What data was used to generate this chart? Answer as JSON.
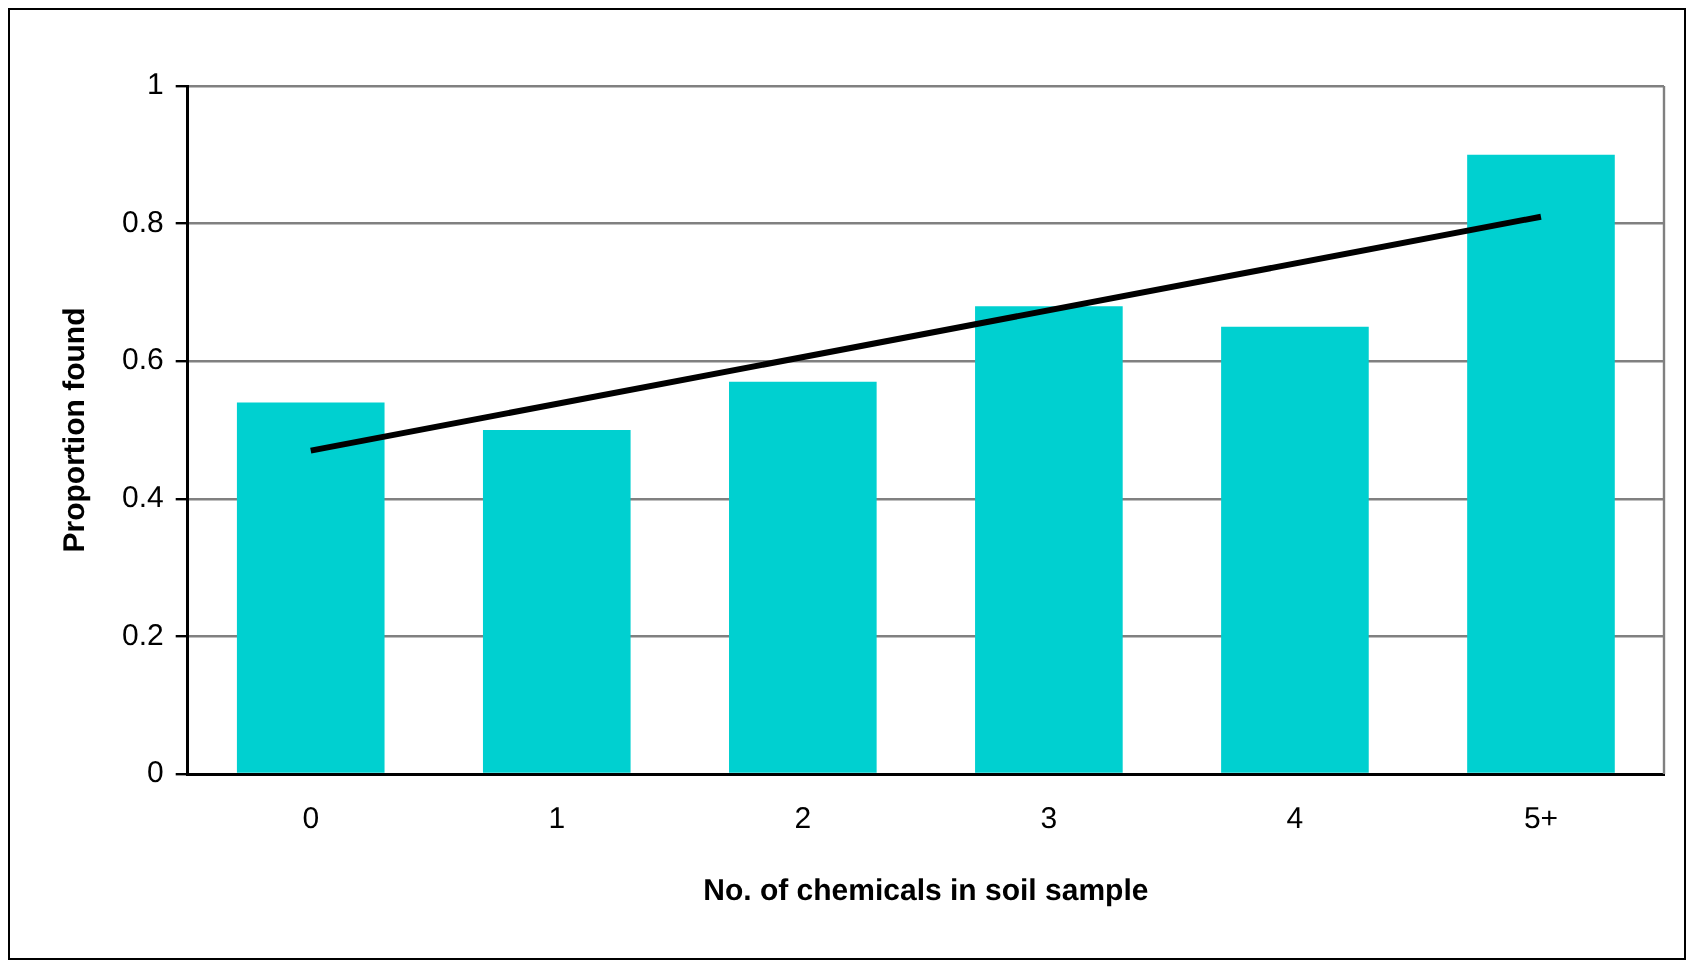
{
  "chart_data": {
    "type": "bar",
    "xlabel": "No. of chemicals in soil sample",
    "ylabel": "Proportion found",
    "categories": [
      "0",
      "1",
      "2",
      "3",
      "4",
      "5+"
    ],
    "series": [
      {
        "color": "#00d0d0",
        "values": [
          0.54,
          0.5,
          0.57,
          0.68,
          0.65,
          0.9
        ]
      },
      {
        "type": "line",
        "color": "#000000",
        "x": [
          "0",
          "5+"
        ],
        "values": [
          0.47,
          0.81
        ]
      }
    ],
    "ylim": [
      0,
      1
    ],
    "yticks": [
      0,
      0.2,
      0.4,
      0.6,
      0.8,
      1
    ],
    "grid": "y",
    "legend": false,
    "marker": "none"
  }
}
